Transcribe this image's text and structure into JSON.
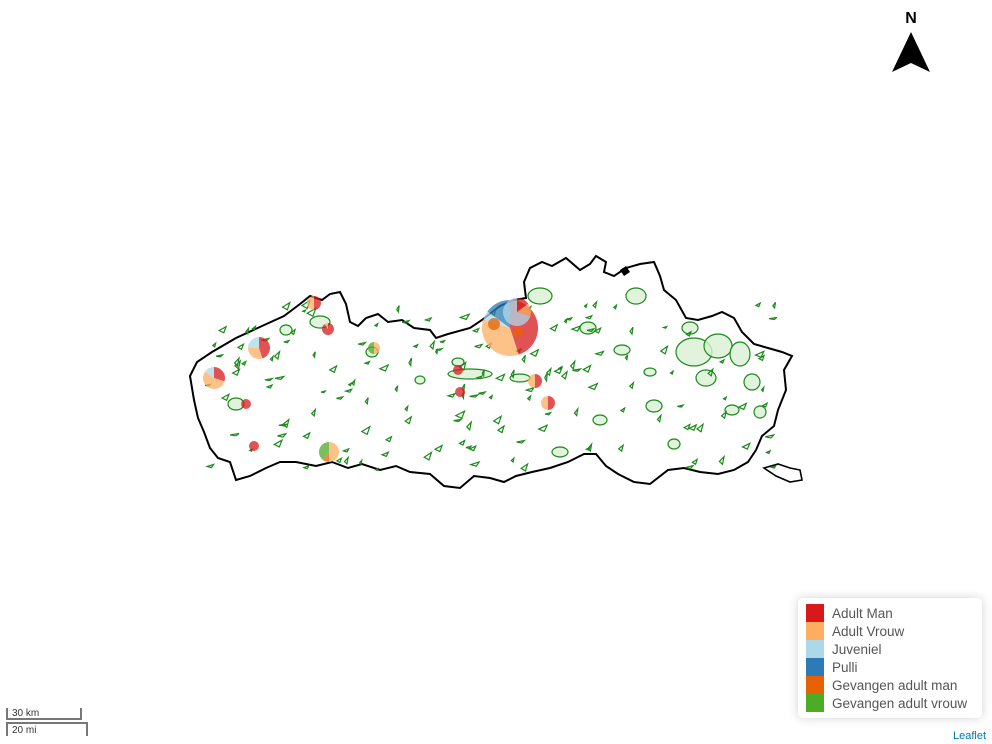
{
  "north_arrow": {
    "letter": "N",
    "icon": "north-arrow-icon"
  },
  "legend": {
    "items": [
      {
        "label": "Adult Man",
        "color": "#d7191c"
      },
      {
        "label": "Adult Vrouw",
        "color": "#fdae61"
      },
      {
        "label": "Juveniel",
        "color": "#abd9e9"
      },
      {
        "label": "Pulli",
        "color": "#2c7bb6"
      },
      {
        "label": "Gevangen adult man",
        "color": "#e66101"
      },
      {
        "label": "Gevangen adult vrouw",
        "color": "#4dac26"
      }
    ]
  },
  "scale": {
    "km": "30 km",
    "mi": "20 mi"
  },
  "attribution": "Leaflet",
  "colors": {
    "region_outline": "#000000",
    "protected_area_stroke": "#1a8a1a",
    "protected_area_fill": "#d9f0d3"
  }
}
